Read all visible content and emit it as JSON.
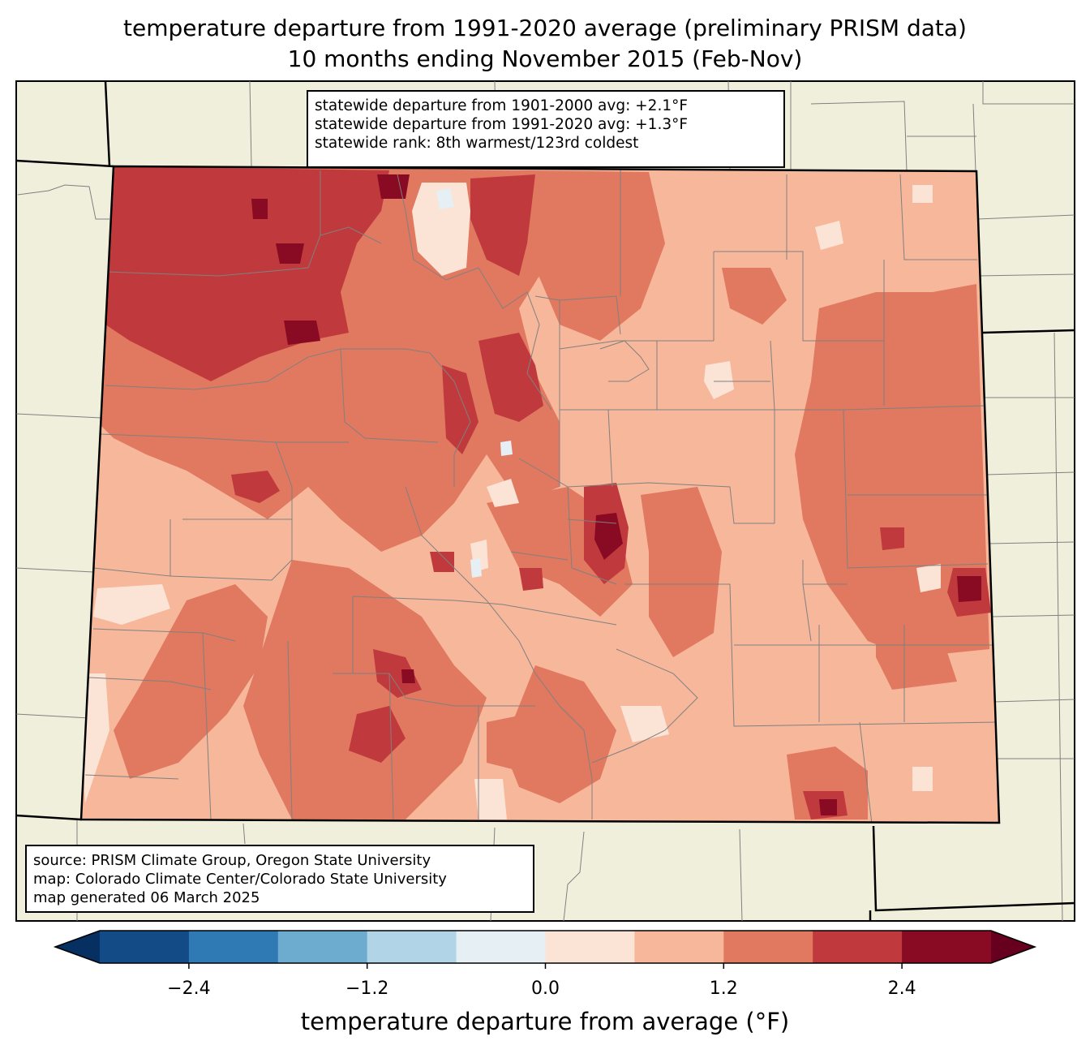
{
  "title": {
    "line1": "temperature departure from 1991-2020 average (preliminary PRISM data)",
    "line2": "10 months ending November 2015 (Feb-Nov)"
  },
  "stats_box": {
    "line1": "statewide departure from 1901-2000 avg: +2.1°F",
    "line2": "statewide departure from 1991-2020 avg: +1.3°F",
    "line3": "statewide rank: 8th warmest/123rd coldest"
  },
  "credits_box": {
    "line1": "source: PRISM Climate Group, Oregon State University",
    "line2": "map: Colorado Climate Center/Colorado State University",
    "line3": "map generated 06 March 2025"
  },
  "colorbar": {
    "label": "temperature departure from average (°F)",
    "tick_labels": [
      "−2.4",
      "−1.2",
      "0.0",
      "1.2",
      "2.4"
    ],
    "tick_values": [
      -2.4,
      -1.2,
      0.0,
      1.2,
      2.4
    ],
    "range": [
      -3.0,
      3.0
    ],
    "step": 0.6,
    "colors": [
      "#053061",
      "#134b87",
      "#2f79b5",
      "#6daccf",
      "#b1d5e7",
      "#e5eff4",
      "#fbe4d6",
      "#f7b79b",
      "#e17860",
      "#c03a3d",
      "#880a23",
      "#67001f"
    ]
  },
  "colors": {
    "land": "#f0efdc",
    "base_fill": "#f7b79b",
    "county_lines": "#808080",
    "state_border": "#000000"
  }
}
